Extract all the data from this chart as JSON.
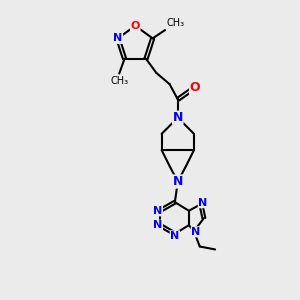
{
  "background_color": "#ebebeb",
  "atom_colors": {
    "N": "#0000ff",
    "O": "#ff0000",
    "C": "#000000"
  },
  "bond_color": "#000000",
  "bond_width": 1.5,
  "figsize": [
    3.0,
    3.0
  ],
  "dpi": 100
}
